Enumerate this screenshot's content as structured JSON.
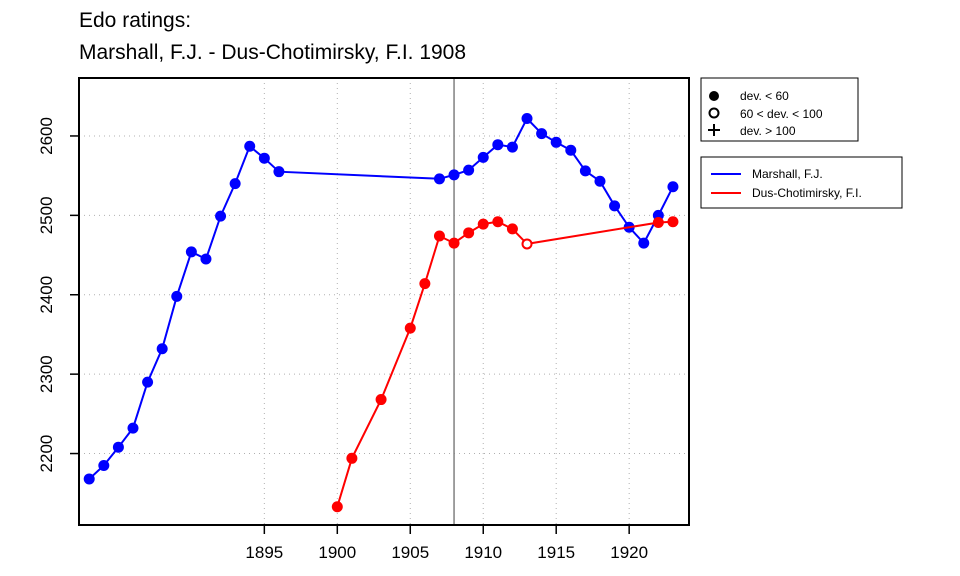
{
  "chart_data": {
    "type": "line",
    "title_lines": [
      "Edo ratings:",
      "Marshall, F.J. - Dus-Chotimirsky, F.I. 1908"
    ],
    "xlabel": "",
    "ylabel": "",
    "xlim": [
      1882.3,
      1924.1
    ],
    "ylim": [
      2110,
      2673
    ],
    "x_ticks": [
      1895,
      1900,
      1905,
      1910,
      1915,
      1920
    ],
    "y_ticks": [
      2200,
      2300,
      2400,
      2500,
      2600
    ],
    "grid": true,
    "marker_year": 1908,
    "deviation_legend": {
      "placement": "top-right",
      "entries": [
        {
          "symbol": "filled",
          "label": "dev. < 60"
        },
        {
          "symbol": "open",
          "label": "60 < dev. < 100"
        },
        {
          "symbol": "plus",
          "label": "dev. > 100"
        }
      ]
    },
    "series_legend": {
      "placement": "right",
      "entries": [
        "Marshall, F.J.",
        "Dus-Chotimirsky, F.I."
      ]
    },
    "series": [
      {
        "name": "Marshall, F.J.",
        "color": "#0000ff",
        "points": [
          {
            "x": 1883,
            "y": 2168,
            "dev": "low"
          },
          {
            "x": 1884,
            "y": 2185,
            "dev": "low"
          },
          {
            "x": 1885,
            "y": 2208,
            "dev": "low"
          },
          {
            "x": 1886,
            "y": 2232,
            "dev": "low"
          },
          {
            "x": 1887,
            "y": 2290,
            "dev": "low"
          },
          {
            "x": 1888,
            "y": 2332,
            "dev": "low"
          },
          {
            "x": 1889,
            "y": 2398,
            "dev": "low"
          },
          {
            "x": 1890,
            "y": 2454,
            "dev": "low"
          },
          {
            "x": 1891,
            "y": 2445,
            "dev": "low"
          },
          {
            "x": 1892,
            "y": 2499,
            "dev": "low"
          },
          {
            "x": 1893,
            "y": 2540,
            "dev": "low"
          },
          {
            "x": 1894,
            "y": 2587,
            "dev": "low"
          },
          {
            "x": 1895,
            "y": 2572,
            "dev": "low"
          },
          {
            "x": 1896,
            "y": 2555,
            "dev": "low"
          },
          {
            "x": 1907,
            "y": 2546,
            "dev": "low"
          },
          {
            "x": 1908,
            "y": 2551,
            "dev": "low"
          },
          {
            "x": 1909,
            "y": 2557,
            "dev": "low"
          },
          {
            "x": 1910,
            "y": 2573,
            "dev": "low"
          },
          {
            "x": 1911,
            "y": 2589,
            "dev": "low"
          },
          {
            "x": 1912,
            "y": 2586,
            "dev": "low"
          },
          {
            "x": 1913,
            "y": 2622,
            "dev": "low"
          },
          {
            "x": 1914,
            "y": 2603,
            "dev": "low"
          },
          {
            "x": 1915,
            "y": 2592,
            "dev": "low"
          },
          {
            "x": 1916,
            "y": 2582,
            "dev": "low"
          },
          {
            "x": 1917,
            "y": 2556,
            "dev": "low"
          },
          {
            "x": 1918,
            "y": 2543,
            "dev": "low"
          },
          {
            "x": 1919,
            "y": 2512,
            "dev": "low"
          },
          {
            "x": 1920,
            "y": 2485,
            "dev": "low"
          },
          {
            "x": 1921,
            "y": 2465,
            "dev": "low"
          },
          {
            "x": 1922,
            "y": 2500,
            "dev": "low"
          },
          {
            "x": 1923,
            "y": 2536,
            "dev": "low"
          }
        ]
      },
      {
        "name": "Dus-Chotimirsky, F.I.",
        "color": "#ff0000",
        "points": [
          {
            "x": 1900,
            "y": 2133,
            "dev": "low"
          },
          {
            "x": 1901,
            "y": 2194,
            "dev": "low"
          },
          {
            "x": 1903,
            "y": 2268,
            "dev": "low"
          },
          {
            "x": 1905,
            "y": 2358,
            "dev": "low"
          },
          {
            "x": 1906,
            "y": 2414,
            "dev": "low"
          },
          {
            "x": 1907,
            "y": 2474,
            "dev": "low"
          },
          {
            "x": 1908,
            "y": 2465,
            "dev": "low"
          },
          {
            "x": 1909,
            "y": 2478,
            "dev": "low"
          },
          {
            "x": 1910,
            "y": 2489,
            "dev": "low"
          },
          {
            "x": 1911,
            "y": 2492,
            "dev": "low"
          },
          {
            "x": 1912,
            "y": 2483,
            "dev": "low"
          },
          {
            "x": 1913,
            "y": 2464,
            "dev": "mid"
          },
          {
            "x": 1922,
            "y": 2491,
            "dev": "low"
          },
          {
            "x": 1923,
            "y": 2492,
            "dev": "low"
          }
        ]
      }
    ]
  }
}
